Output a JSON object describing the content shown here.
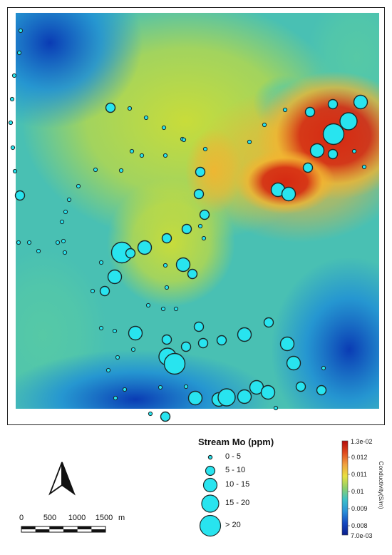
{
  "legend": {
    "title": "Stream Mo (ppm)",
    "classes": [
      {
        "label": "0 - 5"
      },
      {
        "label": "5 - 10"
      },
      {
        "label": "10 - 15"
      },
      {
        "label": "15 - 20"
      },
      {
        "label": "> 20"
      }
    ],
    "symbol_fill": "#28e4ef",
    "symbol_stroke": "#1a2a2a"
  },
  "colorbar": {
    "title": "Conductivity(S/m)",
    "max_label": "1.3e-02",
    "min_label": "7.0e-03",
    "tick_labels": [
      "0.012",
      "0.011",
      "0.01",
      "0.009",
      "0.008"
    ],
    "colors": [
      "#b30c0c",
      "#e04a1e",
      "#f0a040",
      "#e8e040",
      "#8ed06a",
      "#3cc0c8",
      "#2a90d8",
      "#1448c0",
      "#0b1e8c"
    ]
  },
  "scale_bar": {
    "ticks": [
      "0",
      "500",
      "1000",
      "1500"
    ],
    "unit": "m"
  },
  "north_arrow": {
    "icon": "north-arrow-icon"
  },
  "map": {
    "background_gradient": {
      "hot": "#d62a12",
      "warm": "#f3b430",
      "mid": "#c8dc3a",
      "cool": "#56c9a6",
      "cold": "#1f8fd6",
      "deep": "#0a3bb4"
    }
  }
}
